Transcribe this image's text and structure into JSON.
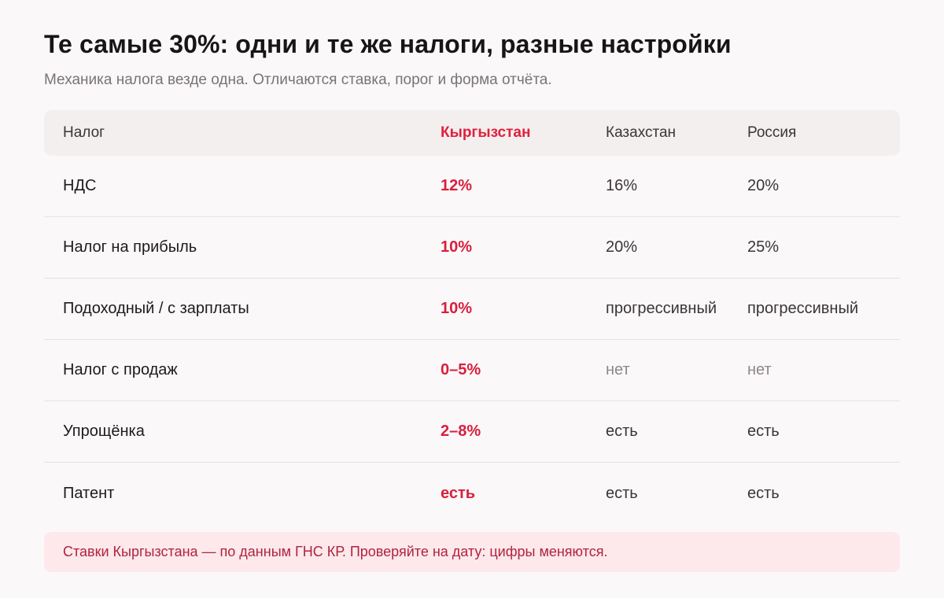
{
  "header": {
    "title": "Те самые 30%: одни и те же налоги, разные настройки",
    "subtitle": "Механика налога везде одна. Отличаются ставка, порог и форма отчёта."
  },
  "table": {
    "columns": [
      "Налог",
      "Кыргызстан",
      "Казахстан",
      "Россия"
    ],
    "accent_column": 1,
    "rows": [
      {
        "tax": "НДС",
        "kg": "12%",
        "kz": "16%",
        "ru": "20%"
      },
      {
        "tax": "Налог на прибыль",
        "kg": "10%",
        "kz": "20%",
        "ru": "25%"
      },
      {
        "tax": "Подоходный / с зарплаты",
        "kg": "10%",
        "kz": "прогрессивный",
        "ru": "прогрессивный"
      },
      {
        "tax": "Налог с продаж",
        "kg": "0–5%",
        "kz": "нет",
        "ru": "нет"
      },
      {
        "tax": "Упрощёнка",
        "kg": "2–8%",
        "kz": "есть",
        "ru": "есть"
      },
      {
        "tax": "Патент",
        "kg": "есть",
        "kz": "есть",
        "ru": "есть"
      }
    ]
  },
  "note": {
    "text": "Ставки Кыргызстана — по данным ГНС КР. Проверяйте на дату: цифры меняются."
  },
  "colors": {
    "accent": "#d81f3d",
    "header_bg": "#f3efee",
    "note_bg": "#fde8ec",
    "note_text": "#b1233c",
    "muted_text": "#8e8788"
  }
}
